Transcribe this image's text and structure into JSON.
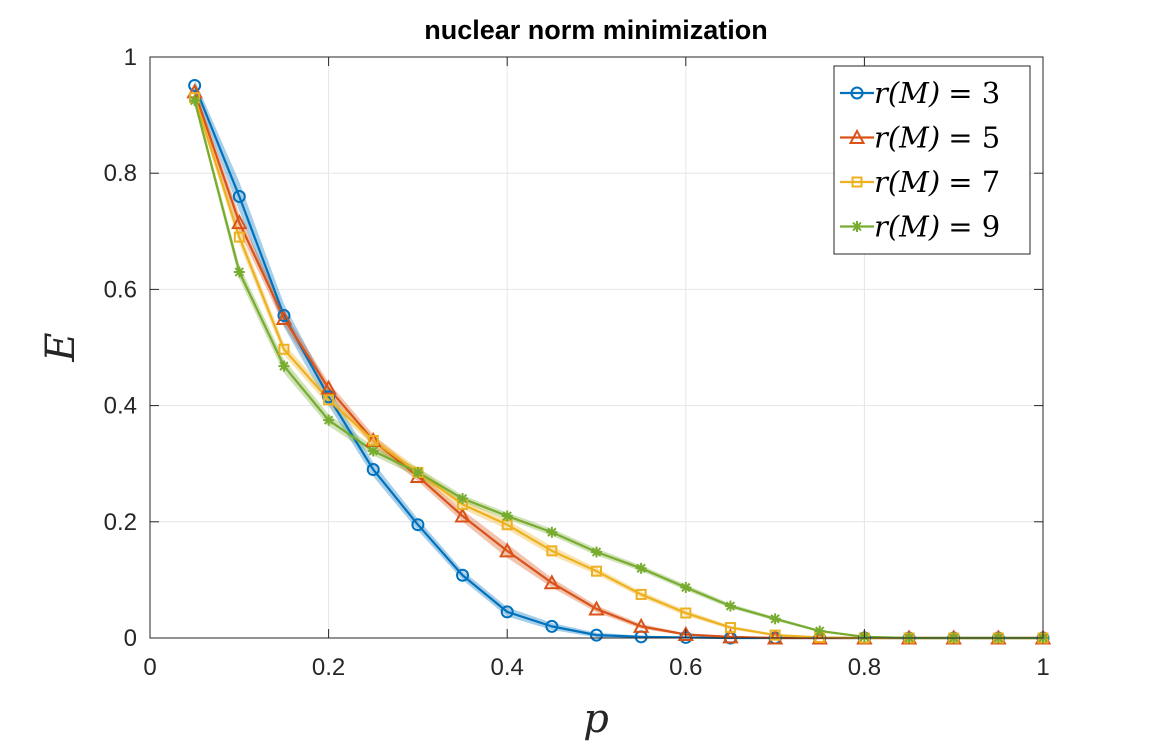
{
  "chart_data": {
    "type": "line",
    "title": "nuclear norm minimization",
    "xlabel": "p",
    "ylabel": "E",
    "xlim": [
      0,
      1
    ],
    "ylim": [
      0,
      1
    ],
    "xticks": [
      "0",
      "0.2",
      "0.4",
      "0.6",
      "0.8",
      "1"
    ],
    "yticks": [
      "0",
      "0.2",
      "0.4",
      "0.6",
      "0.8",
      "1"
    ],
    "grid": true,
    "legend_position": "top-right",
    "x": [
      0.05,
      0.1,
      0.15,
      0.2,
      0.25,
      0.3,
      0.35,
      0.4,
      0.45,
      0.5,
      0.55,
      0.6,
      0.65,
      0.7,
      0.75,
      0.8,
      0.85,
      0.9,
      0.95,
      1.0
    ],
    "series": [
      {
        "name": "r(M) = 3",
        "legend_main": "r(M)",
        "legend_value": "= 3",
        "color": "#0072BD",
        "marker": "circle",
        "values": [
          0.951,
          0.76,
          0.555,
          0.415,
          0.29,
          0.195,
          0.108,
          0.045,
          0.02,
          0.005,
          0.002,
          0.001,
          0.0,
          0.0,
          0.0,
          0.0,
          0.0,
          0.0,
          0.0,
          0.0
        ],
        "band": [
          0.01,
          0.025,
          0.02,
          0.015,
          0.012,
          0.01,
          0.008,
          0.008,
          0.006,
          0.004,
          0.002,
          0.001,
          0.0,
          0.0,
          0.0,
          0.0,
          0.0,
          0.0,
          0.0,
          0.0
        ]
      },
      {
        "name": "r(M) = 5",
        "legend_main": "r(M)",
        "legend_value": "= 5",
        "color": "#D95319",
        "marker": "triangle",
        "values": [
          0.94,
          0.715,
          0.55,
          0.43,
          0.34,
          0.278,
          0.21,
          0.15,
          0.095,
          0.05,
          0.02,
          0.006,
          0.002,
          0.0,
          0.0,
          0.0,
          0.0,
          0.0,
          0.0,
          0.0
        ],
        "band": [
          0.008,
          0.015,
          0.012,
          0.01,
          0.01,
          0.008,
          0.01,
          0.012,
          0.008,
          0.006,
          0.004,
          0.002,
          0.001,
          0.0,
          0.0,
          0.0,
          0.0,
          0.0,
          0.0,
          0.0
        ]
      },
      {
        "name": "r(M) = 7",
        "legend_main": "r(M)",
        "legend_value": "= 7",
        "color": "#EDB120",
        "marker": "square",
        "values": [
          0.93,
          0.69,
          0.497,
          0.41,
          0.34,
          0.285,
          0.23,
          0.195,
          0.15,
          0.115,
          0.075,
          0.043,
          0.018,
          0.005,
          0.001,
          0.0,
          0.0,
          0.0,
          0.0,
          0.0
        ],
        "band": [
          0.008,
          0.012,
          0.01,
          0.01,
          0.008,
          0.008,
          0.008,
          0.008,
          0.008,
          0.006,
          0.005,
          0.005,
          0.003,
          0.002,
          0.001,
          0.0,
          0.0,
          0.0,
          0.0,
          0.0
        ]
      },
      {
        "name": "r(M) = 9",
        "legend_main": "r(M)",
        "legend_value": "= 9",
        "color": "#77AC30",
        "marker": "asterisk",
        "values": [
          0.925,
          0.63,
          0.468,
          0.375,
          0.322,
          0.285,
          0.24,
          0.21,
          0.182,
          0.148,
          0.12,
          0.087,
          0.055,
          0.033,
          0.012,
          0.002,
          0.0,
          0.0,
          0.0,
          0.0
        ],
        "band": [
          0.008,
          0.012,
          0.012,
          0.01,
          0.008,
          0.008,
          0.006,
          0.006,
          0.006,
          0.006,
          0.005,
          0.005,
          0.004,
          0.003,
          0.002,
          0.001,
          0.0,
          0.0,
          0.0,
          0.0
        ]
      }
    ]
  }
}
